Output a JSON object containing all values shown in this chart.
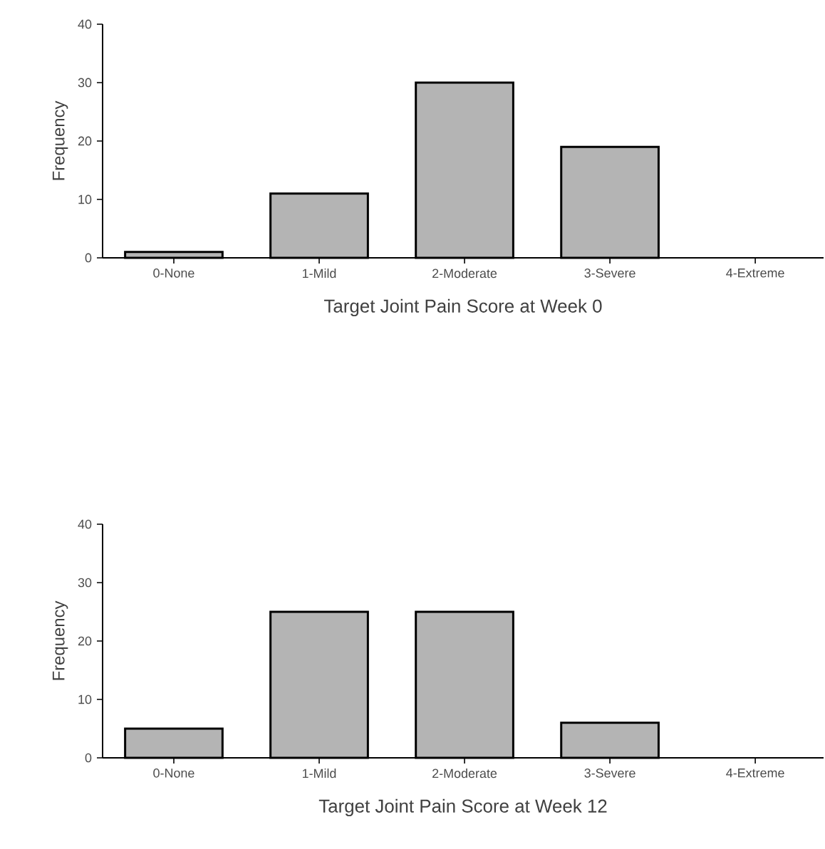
{
  "chart_data": [
    {
      "type": "bar",
      "xlabel": "Target Joint Pain Score at Week 0",
      "ylabel": "Frequency",
      "categories": [
        "0-None",
        "1-Mild",
        "2-Moderate",
        "3-Severe",
        "4-Extreme"
      ],
      "values": [
        1,
        11,
        30,
        19,
        0
      ],
      "color": "#b4b4b4",
      "ylim": [
        0,
        40
      ],
      "yticks": [
        0,
        10,
        20,
        30,
        40
      ]
    },
    {
      "type": "bar",
      "xlabel": "Target Joint Pain Score at Week 12",
      "ylabel": "Frequency",
      "categories": [
        "0-None",
        "1-Mild",
        "2-Moderate",
        "3-Severe",
        "4-Extreme"
      ],
      "values": [
        5,
        25,
        25,
        6,
        0
      ],
      "color": "#b4b4b4",
      "ylim": [
        0,
        40
      ],
      "yticks": [
        0,
        10,
        20,
        30,
        40
      ]
    }
  ]
}
